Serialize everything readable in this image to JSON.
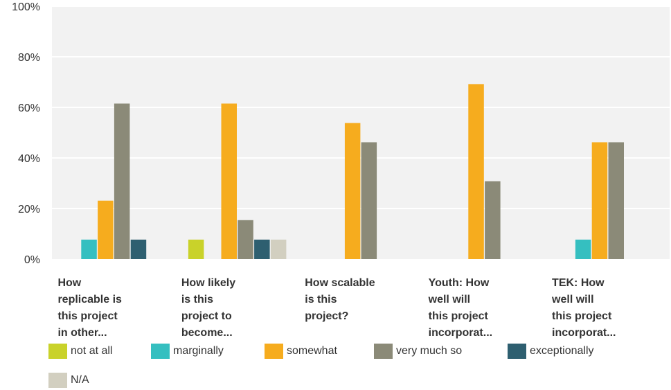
{
  "chart_data": {
    "type": "bar",
    "categories": [
      [
        "How",
        "replicable is",
        "this project",
        "in other..."
      ],
      [
        "How likely",
        "is this",
        "project to",
        "become..."
      ],
      [
        "How scalable",
        "is this",
        "project?"
      ],
      [
        "Youth: How",
        "well will",
        "this project",
        "incorporat..."
      ],
      [
        "TEK: How",
        "well will",
        "this project",
        "incorporat..."
      ]
    ],
    "series": [
      {
        "name": "not at all",
        "color": "#c9d22a",
        "values": [
          0,
          7.7,
          0,
          0,
          0
        ]
      },
      {
        "name": "marginally",
        "color": "#35bfc0",
        "values": [
          7.7,
          0,
          0,
          0,
          7.7
        ]
      },
      {
        "name": "somewhat",
        "color": "#f6ac1e",
        "values": [
          23.1,
          61.5,
          53.8,
          69.2,
          46.2
        ]
      },
      {
        "name": "very much so",
        "color": "#8b8a78",
        "values": [
          61.5,
          15.4,
          46.2,
          30.8,
          46.2
        ]
      },
      {
        "name": "exceptionally",
        "color": "#2e5f70",
        "values": [
          7.7,
          7.7,
          0,
          0,
          0
        ]
      },
      {
        "name": "N/A",
        "color": "#d2cfc0",
        "values": [
          0,
          7.7,
          0,
          0,
          0
        ]
      }
    ],
    "yticks": [
      "0%",
      "20%",
      "40%",
      "60%",
      "80%",
      "100%"
    ],
    "ylim": [
      0,
      100
    ],
    "grid": true,
    "legend_position": "bottom"
  }
}
